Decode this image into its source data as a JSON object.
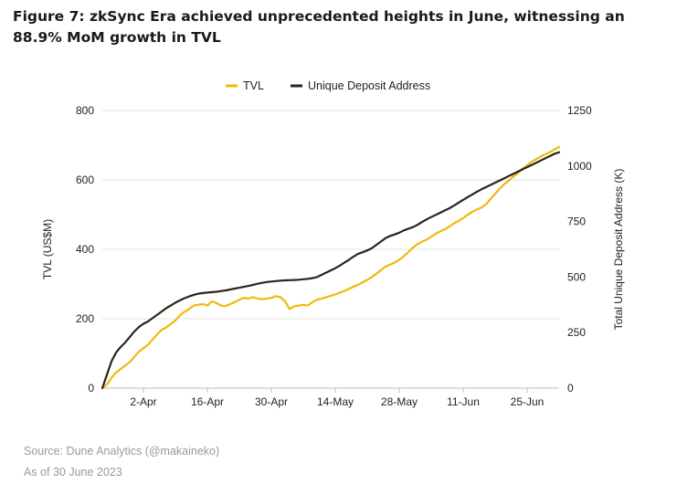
{
  "title": "Figure 7: zkSync Era achieved unprecedented heights in June, witnessing an 88.9% MoM growth in TVL",
  "footer": {
    "source": "Source: Dune Analytics (@makaineko)",
    "as_of": "As of 30 June 2023"
  },
  "chart_data": {
    "type": "line",
    "title": "",
    "legend_position": "top-center",
    "grid": "horizontal",
    "x": {
      "start_day": 0,
      "end_day": 100,
      "ticks": [
        {
          "day": 9,
          "label": "2-Apr"
        },
        {
          "day": 23,
          "label": "16-Apr"
        },
        {
          "day": 37,
          "label": "30-Apr"
        },
        {
          "day": 51,
          "label": "14-May"
        },
        {
          "day": 65,
          "label": "28-May"
        },
        {
          "day": 79,
          "label": "11-Jun"
        },
        {
          "day": 93,
          "label": "25-Jun"
        }
      ]
    },
    "y_left": {
      "label": "TVL (US$M)",
      "range": [
        0,
        800
      ],
      "ticks": [
        0,
        200,
        400,
        600,
        800
      ]
    },
    "y_right": {
      "label": "Total Unique Deposit Address (K)",
      "range": [
        0,
        1250
      ],
      "ticks": [
        0,
        250,
        500,
        750,
        1000,
        1250
      ]
    },
    "series": [
      {
        "name": "TVL",
        "axis": "left",
        "color": "#f0b90b",
        "points": [
          [
            0,
            0
          ],
          [
            1,
            10
          ],
          [
            2,
            30
          ],
          [
            3,
            45
          ],
          [
            4,
            55
          ],
          [
            5,
            65
          ],
          [
            6,
            75
          ],
          [
            7,
            90
          ],
          [
            8,
            105
          ],
          [
            9,
            115
          ],
          [
            10,
            125
          ],
          [
            11,
            140
          ],
          [
            12,
            155
          ],
          [
            13,
            168
          ],
          [
            14,
            175
          ],
          [
            15,
            185
          ],
          [
            16,
            195
          ],
          [
            17,
            210
          ],
          [
            18,
            220
          ],
          [
            19,
            228
          ],
          [
            20,
            238
          ],
          [
            21,
            240
          ],
          [
            22,
            242
          ],
          [
            23,
            238
          ],
          [
            24,
            250
          ],
          [
            25,
            245
          ],
          [
            26,
            238
          ],
          [
            27,
            236
          ],
          [
            28,
            242
          ],
          [
            29,
            248
          ],
          [
            30,
            255
          ],
          [
            31,
            260
          ],
          [
            32,
            258
          ],
          [
            33,
            262
          ],
          [
            34,
            258
          ],
          [
            35,
            256
          ],
          [
            36,
            258
          ],
          [
            37,
            260
          ],
          [
            38,
            265
          ],
          [
            39,
            262
          ],
          [
            40,
            250
          ],
          [
            41,
            228
          ],
          [
            42,
            236
          ],
          [
            43,
            238
          ],
          [
            44,
            240
          ],
          [
            45,
            238
          ],
          [
            46,
            248
          ],
          [
            47,
            255
          ],
          [
            48,
            258
          ],
          [
            49,
            262
          ],
          [
            50,
            266
          ],
          [
            51,
            270
          ],
          [
            52,
            275
          ],
          [
            53,
            280
          ],
          [
            54,
            286
          ],
          [
            55,
            292
          ],
          [
            56,
            298
          ],
          [
            57,
            305
          ],
          [
            58,
            312
          ],
          [
            59,
            320
          ],
          [
            60,
            330
          ],
          [
            61,
            340
          ],
          [
            62,
            350
          ],
          [
            63,
            356
          ],
          [
            64,
            362
          ],
          [
            65,
            370
          ],
          [
            66,
            380
          ],
          [
            67,
            392
          ],
          [
            68,
            405
          ],
          [
            69,
            415
          ],
          [
            70,
            422
          ],
          [
            71,
            428
          ],
          [
            72,
            436
          ],
          [
            73,
            445
          ],
          [
            74,
            452
          ],
          [
            75,
            458
          ],
          [
            76,
            466
          ],
          [
            77,
            475
          ],
          [
            78,
            482
          ],
          [
            79,
            490
          ],
          [
            80,
            500
          ],
          [
            81,
            508
          ],
          [
            82,
            515
          ],
          [
            83,
            520
          ],
          [
            84,
            530
          ],
          [
            85,
            545
          ],
          [
            86,
            560
          ],
          [
            87,
            575
          ],
          [
            88,
            588
          ],
          [
            89,
            598
          ],
          [
            90,
            610
          ],
          [
            91,
            620
          ],
          [
            92,
            632
          ],
          [
            93,
            642
          ],
          [
            94,
            652
          ],
          [
            95,
            660
          ],
          [
            96,
            668
          ],
          [
            97,
            674
          ],
          [
            98,
            680
          ],
          [
            99,
            688
          ],
          [
            100,
            695
          ]
        ]
      },
      {
        "name": "Unique Deposit Address",
        "axis": "right",
        "color": "#2b2418",
        "points": [
          [
            0,
            0
          ],
          [
            1,
            60
          ],
          [
            2,
            120
          ],
          [
            3,
            160
          ],
          [
            4,
            185
          ],
          [
            5,
            205
          ],
          [
            6,
            230
          ],
          [
            7,
            255
          ],
          [
            8,
            275
          ],
          [
            9,
            290
          ],
          [
            10,
            300
          ],
          [
            11,
            315
          ],
          [
            12,
            330
          ],
          [
            13,
            345
          ],
          [
            14,
            360
          ],
          [
            15,
            372
          ],
          [
            16,
            385
          ],
          [
            17,
            395
          ],
          [
            18,
            405
          ],
          [
            19,
            413
          ],
          [
            20,
            420
          ],
          [
            21,
            425
          ],
          [
            22,
            428
          ],
          [
            23,
            430
          ],
          [
            24,
            432
          ],
          [
            25,
            434
          ],
          [
            26,
            437
          ],
          [
            27,
            440
          ],
          [
            28,
            444
          ],
          [
            29,
            448
          ],
          [
            30,
            452
          ],
          [
            31,
            456
          ],
          [
            32,
            460
          ],
          [
            33,
            465
          ],
          [
            34,
            470
          ],
          [
            35,
            474
          ],
          [
            36,
            478
          ],
          [
            37,
            480
          ],
          [
            38,
            482
          ],
          [
            39,
            484
          ],
          [
            40,
            485
          ],
          [
            41,
            486
          ],
          [
            42,
            487
          ],
          [
            43,
            488
          ],
          [
            44,
            490
          ],
          [
            45,
            492
          ],
          [
            46,
            495
          ],
          [
            47,
            500
          ],
          [
            48,
            510
          ],
          [
            49,
            520
          ],
          [
            50,
            530
          ],
          [
            51,
            540
          ],
          [
            52,
            552
          ],
          [
            53,
            565
          ],
          [
            54,
            578
          ],
          [
            55,
            592
          ],
          [
            56,
            605
          ],
          [
            57,
            612
          ],
          [
            58,
            620
          ],
          [
            59,
            630
          ],
          [
            60,
            645
          ],
          [
            61,
            660
          ],
          [
            62,
            675
          ],
          [
            63,
            685
          ],
          [
            64,
            692
          ],
          [
            65,
            700
          ],
          [
            66,
            710
          ],
          [
            67,
            718
          ],
          [
            68,
            725
          ],
          [
            69,
            735
          ],
          [
            70,
            748
          ],
          [
            71,
            760
          ],
          [
            72,
            770
          ],
          [
            73,
            780
          ],
          [
            74,
            790
          ],
          [
            75,
            800
          ],
          [
            76,
            810
          ],
          [
            77,
            822
          ],
          [
            78,
            835
          ],
          [
            79,
            848
          ],
          [
            80,
            860
          ],
          [
            81,
            872
          ],
          [
            82,
            884
          ],
          [
            83,
            895
          ],
          [
            84,
            905
          ],
          [
            85,
            915
          ],
          [
            86,
            925
          ],
          [
            87,
            935
          ],
          [
            88,
            945
          ],
          [
            89,
            955
          ],
          [
            90,
            965
          ],
          [
            91,
            975
          ],
          [
            92,
            985
          ],
          [
            93,
            995
          ],
          [
            94,
            1005
          ],
          [
            95,
            1015
          ],
          [
            96,
            1025
          ],
          [
            97,
            1035
          ],
          [
            98,
            1045
          ],
          [
            99,
            1055
          ],
          [
            100,
            1062
          ]
        ]
      }
    ]
  }
}
